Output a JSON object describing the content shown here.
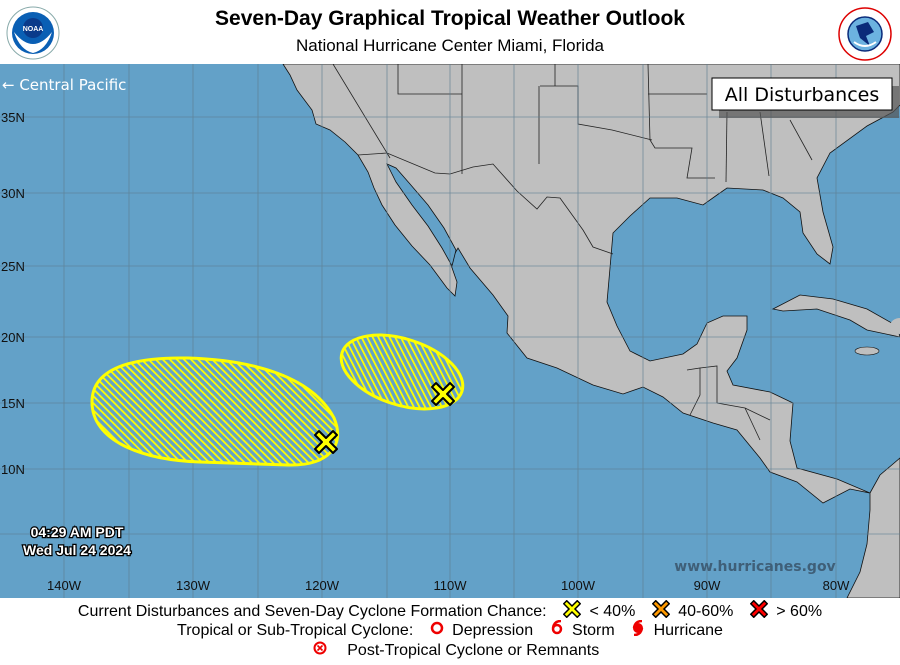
{
  "header": {
    "title": "Seven-Day Graphical Tropical Weather Outlook",
    "subtitle": "National Hurricane Center  Miami, Florida",
    "left_logo": "NOAA",
    "right_logo": "National Weather Service"
  },
  "map": {
    "region_link": "← Central Pacific",
    "view_label": "All Disturbances",
    "website": "www.hurricanes.gov",
    "timestamp_time": "04:29 AM PDT",
    "timestamp_date": "Wed Jul 24 2024",
    "lat_labels": [
      "35N",
      "30N",
      "25N",
      "20N",
      "15N",
      "10N"
    ],
    "lon_labels": [
      "140W",
      "130W",
      "120W",
      "110W",
      "100W",
      "90W",
      "80W"
    ],
    "disturbances": [
      {
        "marker": "x-icon",
        "chance_category": "< 40%",
        "color": "#ffff00"
      },
      {
        "marker": "x-icon",
        "chance_category": "< 40%",
        "color": "#ffff00"
      }
    ],
    "colors": {
      "ocean": "#63a1c8",
      "land": "#bfbfbf",
      "grid": "#5e7e92",
      "low": "#ffff00",
      "medium": "#ff9900",
      "high": "#ff0000"
    }
  },
  "legend": {
    "row1_label": "Current Disturbances and Seven-Day Cyclone Formation Chance:",
    "low": "< 40%",
    "medium": "40-60%",
    "high": "> 60%",
    "row2_label": "Tropical or Sub-Tropical Cyclone:",
    "depression": "Depression",
    "storm": "Storm",
    "hurricane": "Hurricane",
    "post_tropical": "Post-Tropical Cyclone or Remnants"
  }
}
